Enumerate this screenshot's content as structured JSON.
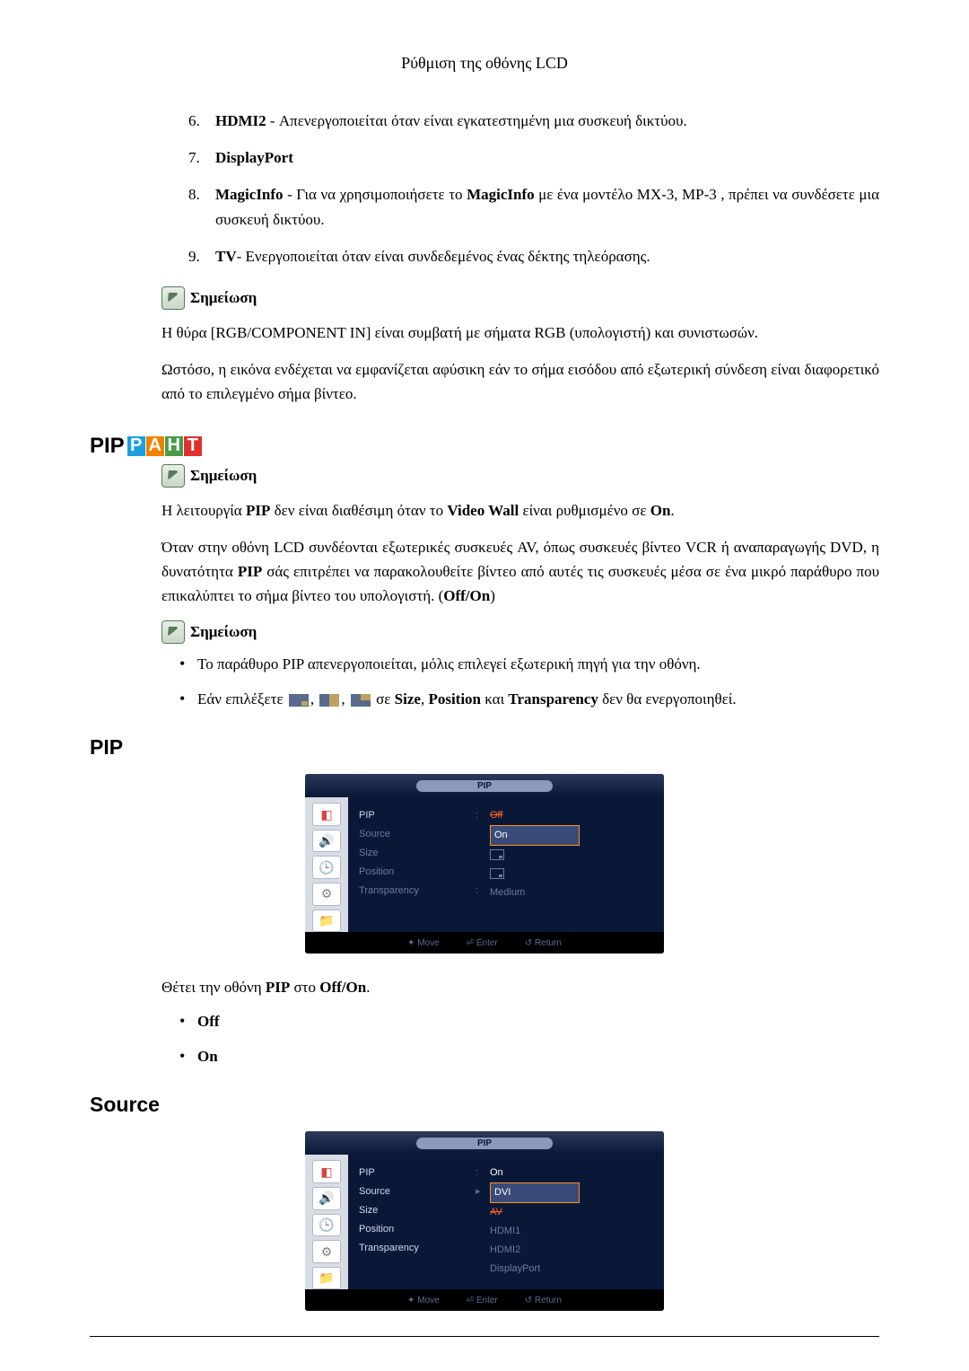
{
  "header": "Ρύθμιση της οθόνης LCD",
  "list_top": [
    {
      "num": "6.",
      "html": "<b>HDMI2</b> - Απενεργοποιείται όταν είναι εγκατεστημένη μια συσκευή δικτύου."
    },
    {
      "num": "7.",
      "html": "<b>DisplayPort</b>"
    },
    {
      "num": "8.",
      "html": "<b>MagicInfo</b> - Για να χρησιμοποιήσετε το <b>MagicInfo</b> με ένα μοντέλο MX-3, MP-3 , πρέπει να συνδέσετε μια συσκευή δικτύου."
    },
    {
      "num": "9.",
      "html": "<b>TV</b>- Ενεργοποιείται όταν είναι συνδεδεμένος ένας δέκτης τηλεόρασης."
    }
  ],
  "note_label": "Σημείωση",
  "note1_p1": "Η θύρα [RGB/COMPONENT IN] είναι συμβατή με σήματα RGB (υπολογιστή) και συνιστωσών.",
  "note1_p2": "Ωστόσο, η εικόνα ενδέχεται να εμφανίζεται αφύσικη εάν το σήμα εισόδου από εξωτερική σύνδεση είναι διαφορετικό από το επιλεγμένο σήμα βίντεο.",
  "badge": {
    "pip_text": "PIP",
    "boxes": [
      {
        "letter": "P",
        "color": "#1aa0e0"
      },
      {
        "letter": "A",
        "color": "#f08000"
      },
      {
        "letter": "H",
        "color": "#4a9a4a"
      },
      {
        "letter": "T",
        "color": "#e03030"
      }
    ]
  },
  "pip_note_p1_html": "Η λειτουργία <b>PIP</b> δεν είναι διαθέσιμη όταν το <b>Video Wall</b> είναι ρυθμισμένο σε <b>On</b>.",
  "pip_p2_html": "Όταν στην οθόνη LCD συνδέονται εξωτερικές συσκευές AV, όπως συσκευές βίντεο VCR ή αναπαραγωγής DVD, η δυνατότητα <b>PIP</b> σάς επιτρέπει να παρακολουθείτε βίντεο από αυτές τις συσκευές μέσα σε ένα μικρό παράθυρο που επικαλύπτει το σήμα βίντεο του υπολογιστή. (<b>Off/On</b>)",
  "bullets": [
    "Το παράθυρο PIP απενεργοποιείται, μόλις επιλεγεί εξωτερική πηγή για την οθόνη."
  ],
  "bullet2_pre": "Εάν επιλέξετε ",
  "bullet2_post_html": " σε <b>Size</b>, <b>Position</b> και <b>Transparency</b> δεν θα ενεργοποιηθεί.",
  "section_pip": "PIP",
  "section_source": "Source",
  "osd_common": {
    "title": "PIP",
    "labels": [
      "PIP",
      "Source",
      "Size",
      "Position",
      "Transparency"
    ],
    "footer": {
      "move": "Move",
      "enter": "Enter",
      "return": "Return"
    },
    "sidebar_colors": {
      "icon_bg": "#ffffff",
      "icon_border": "#b0b8c8"
    },
    "colors": {
      "bg": "#0a1838",
      "sidebar_bg": "#d8dce4",
      "label_dim": "#6a7aa0",
      "label_active": "#d0d8f0",
      "value_active": "#ffffff",
      "highlight_bg": "#3a4a7a",
      "highlight_border": "#ff9020",
      "strike": "#ff6020",
      "footer_bg": "#000000"
    }
  },
  "osd1_values": {
    "off": "Off",
    "on": "On",
    "medium": "Medium"
  },
  "osd2_values": {
    "pip_on": "On",
    "source_options": [
      "DVI",
      "AV",
      "HDMI1",
      "HDMI2",
      "DisplayPort"
    ]
  },
  "pip_desc_html": "Θέτει την οθόνη <b>PIP</b> στο <b>Off/On</b>.",
  "pip_options": [
    "Off",
    "On"
  ]
}
